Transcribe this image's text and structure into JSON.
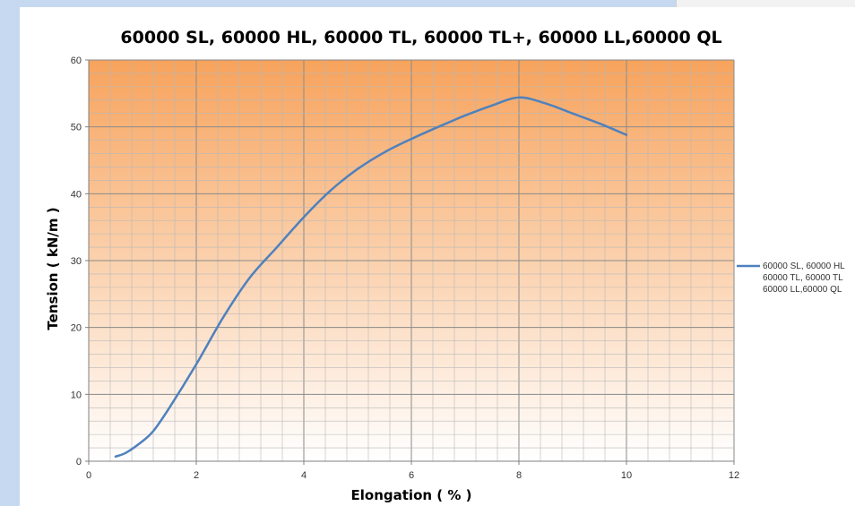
{
  "chart_data": {
    "type": "line",
    "title": "60000 SL, 60000 HL, 60000 TL, 60000 TL+, 60000 LL,60000 QL",
    "xlabel": "Elongation ( % )",
    "ylabel": "Tension ( kN/m )",
    "xlim": [
      0,
      12
    ],
    "ylim": [
      0,
      60
    ],
    "xticks": [
      "0",
      "2",
      "4",
      "6",
      "8",
      "10",
      "12"
    ],
    "yticks": [
      "0",
      "10",
      "20",
      "30",
      "40",
      "50",
      "60"
    ],
    "grid": true,
    "legend_position": "right",
    "background_gradient": [
      "#f7a35c",
      "#ffffff"
    ],
    "series": [
      {
        "name": "60000 SL, 60000 HL, 60000 TL, 60000 TL+, 60000 LL,60000 QL",
        "legend_lines": [
          "60000 SL, 60000 HL",
          "60000 TL, 60000 TL",
          "60000 LL,60000 QL"
        ],
        "color": "#4f81bd",
        "x": [
          0.5,
          0.7,
          1.0,
          1.2,
          1.5,
          2.0,
          2.5,
          3.0,
          3.5,
          4.0,
          4.5,
          5.0,
          5.5,
          6.0,
          6.5,
          7.0,
          7.5,
          8.0,
          8.5,
          9.0,
          9.5,
          10.0
        ],
        "y": [
          0.7,
          1.3,
          3.0,
          4.5,
          8.0,
          14.5,
          21.5,
          27.5,
          32.0,
          36.5,
          40.5,
          43.7,
          46.2,
          48.2,
          50.0,
          51.7,
          53.2,
          54.4,
          53.5,
          52.0,
          50.5,
          48.8
        ]
      }
    ]
  }
}
